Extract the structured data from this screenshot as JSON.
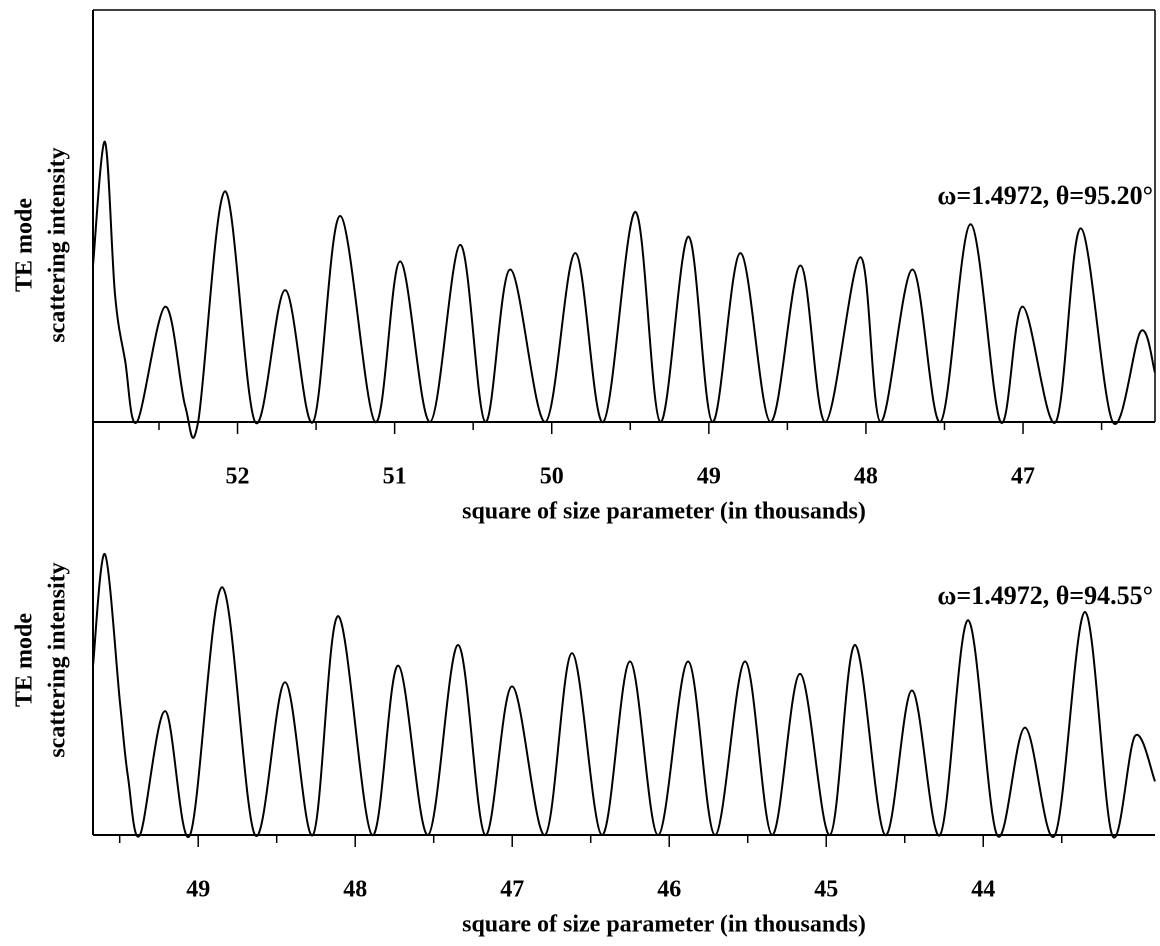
{
  "chart_data": [
    {
      "type": "line",
      "xlabel": "square of size parameter (in thousands)",
      "ylabel": [
        "TE mode",
        "scattering intensity"
      ],
      "annotation": "ω=1.4972, θ=95.20°",
      "xlim": [
        52.92,
        46.16
      ],
      "xticks": [
        52,
        51,
        50,
        49,
        48,
        47
      ],
      "xminorticks": [
        52.5,
        51.5,
        50.5,
        49.5,
        48.5,
        47.5,
        46.5
      ],
      "ylim": [
        0,
        1
      ],
      "x": [
        52.92,
        52.844,
        52.78,
        52.716,
        52.64,
        52.461,
        52.334,
        52.251,
        52.079,
        51.888,
        51.697,
        51.519,
        51.347,
        51.124,
        50.965,
        50.774,
        50.582,
        50.423,
        50.264,
        50.041,
        49.85,
        49.672,
        49.468,
        49.309,
        49.13,
        48.977,
        48.799,
        48.608,
        48.417,
        48.258,
        48.035,
        47.907,
        47.704,
        47.525,
        47.334,
        47.143,
        47.003,
        46.792,
        46.633,
        46.429,
        46.251,
        46.16
      ],
      "series": [
        {
          "color": "#000000",
          "values": [
            0.38,
            0.68,
            0.31,
            0.15,
            0.0,
            0.28,
            0.04,
            0.0,
            0.56,
            0.0,
            0.32,
            0.0,
            0.5,
            0.0,
            0.39,
            0.0,
            0.43,
            0.0,
            0.37,
            0.0,
            0.41,
            0.0,
            0.51,
            0.0,
            0.45,
            0.0,
            0.41,
            0.0,
            0.38,
            0.0,
            0.4,
            0.0,
            0.37,
            0.0,
            0.48,
            0.0,
            0.28,
            0.0,
            0.47,
            0.0,
            0.22,
            0.12
          ]
        }
      ]
    },
    {
      "type": "line",
      "xlabel": "square of size parameter (in thousands)",
      "ylabel": [
        "TE mode",
        "scattering intensity"
      ],
      "annotation": "ω=1.4972, θ=94.55°",
      "xlim": [
        49.67,
        42.906
      ],
      "xticks": [
        49,
        48,
        47,
        46,
        45,
        44
      ],
      "xminorticks": [
        49.5,
        48.5,
        47.5,
        46.5,
        45.5,
        44.5,
        43.5
      ],
      "ylim": [
        0,
        1
      ],
      "x": [
        49.67,
        49.594,
        49.498,
        49.447,
        49.371,
        49.211,
        49.052,
        48.848,
        48.638,
        48.447,
        48.269,
        48.109,
        47.893,
        47.727,
        47.536,
        47.345,
        47.173,
        47.001,
        46.791,
        46.619,
        46.428,
        46.25,
        46.071,
        45.88,
        45.708,
        45.517,
        45.345,
        45.167,
        44.976,
        44.817,
        44.626,
        44.454,
        44.275,
        44.097,
        43.912,
        43.734,
        43.543,
        43.352,
        43.179,
        43.033,
        42.906
      ],
      "series": [
        {
          "color": "#000000",
          "values": [
            0.41,
            0.68,
            0.32,
            0.14,
            0.0,
            0.3,
            0.0,
            0.6,
            0.0,
            0.37,
            0.0,
            0.53,
            0.0,
            0.41,
            0.0,
            0.46,
            0.0,
            0.36,
            0.0,
            0.44,
            0.0,
            0.42,
            0.0,
            0.42,
            0.0,
            0.42,
            0.0,
            0.39,
            0.0,
            0.46,
            0.0,
            0.35,
            0.0,
            0.52,
            0.0,
            0.26,
            0.0,
            0.54,
            0.0,
            0.24,
            0.13
          ]
        }
      ]
    }
  ]
}
